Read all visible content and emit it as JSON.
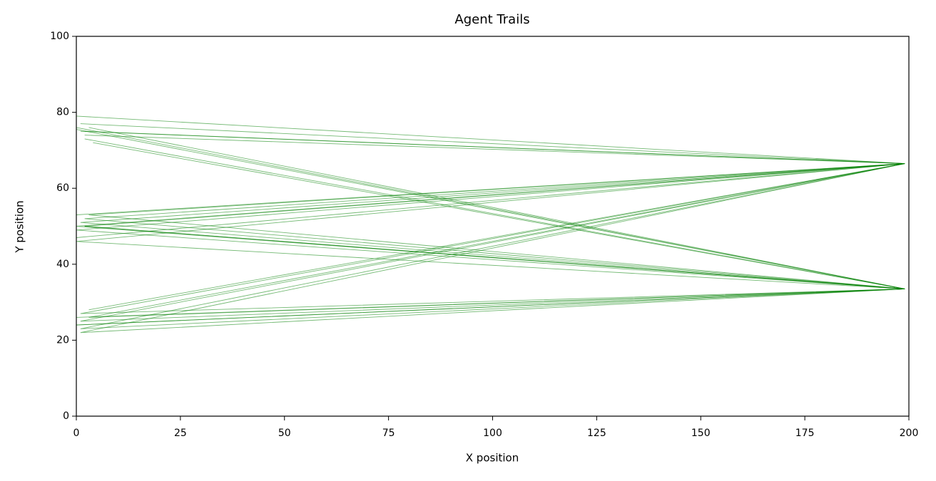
{
  "chart_data": {
    "type": "line",
    "title": "Agent Trails",
    "x_label": "X position",
    "y_label": "Y position",
    "xlim": [
      0,
      200
    ],
    "ylim": [
      0,
      100
    ],
    "xticks": [
      0,
      25,
      50,
      75,
      100,
      125,
      150,
      175,
      200
    ],
    "yticks": [
      0,
      20,
      40,
      60,
      80,
      100
    ],
    "series": [
      {
        "color": "#008000",
        "x": [
          0,
          199,
          1,
          199,
          2,
          199
        ],
        "values": [
          75.5,
          33.5,
          25,
          66.5,
          50,
          33.5
        ]
      },
      {
        "color": "#008000",
        "x": [
          2,
          199,
          0,
          199,
          3,
          199
        ],
        "values": [
          74,
          66.5,
          49,
          33.5,
          26,
          66.5
        ]
      },
      {
        "color": "#008000",
        "x": [
          1,
          199,
          2,
          199,
          0
        ],
        "values": [
          77,
          66.5,
          52,
          33.5,
          24
        ]
      },
      {
        "color": "#008000",
        "x": [
          0,
          199,
          3,
          199,
          1,
          199
        ],
        "values": [
          26,
          33.5,
          76,
          33.5,
          51,
          66.5
        ]
      },
      {
        "color": "#008000",
        "x": [
          4,
          199,
          1,
          199,
          0
        ],
        "values": [
          72,
          33.5,
          23,
          66.5,
          47
        ]
      },
      {
        "color": "#008000",
        "x": [
          0,
          199,
          2,
          199,
          1,
          199
        ],
        "values": [
          53,
          66.5,
          75,
          66.5,
          27,
          33.5
        ]
      },
      {
        "color": "#008000",
        "x": [
          3,
          199,
          0,
          199,
          2
        ],
        "values": [
          28,
          66.5,
          46,
          33.5,
          73
        ]
      },
      {
        "color": "#008000",
        "x": [
          0,
          199,
          1,
          199,
          0,
          199
        ],
        "values": [
          79,
          66.5,
          22,
          33.5,
          50,
          66.5
        ]
      },
      {
        "color": "#008000",
        "x": [
          2,
          199,
          0,
          199
        ],
        "values": [
          50,
          33.5,
          76,
          33.5
        ]
      },
      {
        "color": "#008000",
        "x": [
          0,
          199,
          3,
          199,
          1
        ],
        "values": [
          24,
          33.5,
          53,
          66.5,
          75
        ]
      }
    ]
  }
}
